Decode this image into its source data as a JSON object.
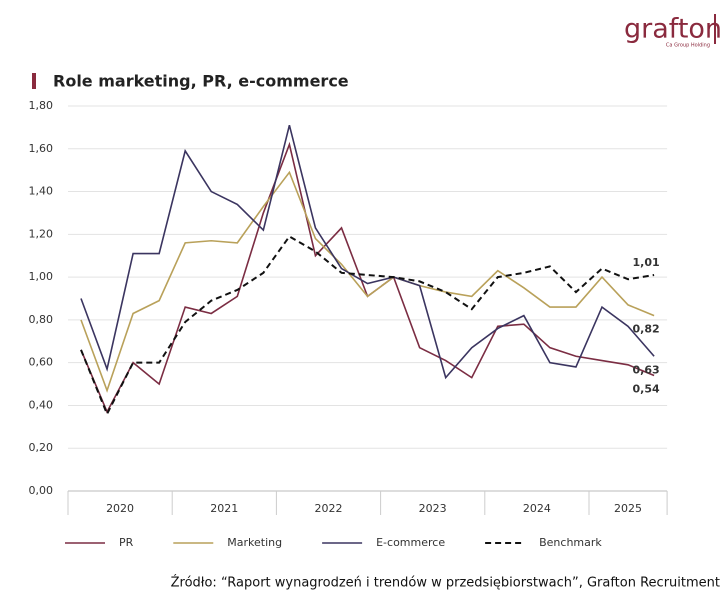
{
  "logo": "grafton",
  "logo_tagline": "Ca Group Holding",
  "source": "Źródło: “Raport wynagrodzeń i trendów w przedsiębiorstwach”, Grafton Recruitment",
  "chart_data": {
    "type": "line",
    "title": "Role marketing, PR, e-commerce",
    "categories": [
      "2020",
      null,
      null,
      null,
      "2021",
      null,
      null,
      null,
      "2022",
      null,
      null,
      null,
      "2023",
      null,
      null,
      null,
      "2024",
      null,
      null,
      null,
      "2025",
      null,
      null
    ],
    "ylim": [
      0,
      1.8
    ],
    "yticks": [
      {
        "value": 0,
        "label": "0,00"
      },
      {
        "value": 0.2,
        "label": "0,20"
      },
      {
        "value": 0.4,
        "label": "0,40"
      },
      {
        "value": 0.6,
        "label": "0,60"
      },
      {
        "value": 0.8,
        "label": "0,80"
      },
      {
        "value": 1,
        "label": "1,00"
      },
      {
        "value": 1.2,
        "label": "1,20"
      },
      {
        "value": 1.4,
        "label": "1,40"
      },
      {
        "value": 1.6,
        "label": "1,60"
      },
      {
        "value": 1.8,
        "label": "1,80"
      }
    ],
    "grid": true,
    "series": [
      {
        "name": "PR",
        "color": "#7b2d43",
        "dashed": false,
        "values": [
          0.66,
          0.37,
          0.6,
          0.5,
          0.86,
          0.83,
          0.91,
          1.3,
          1.62,
          1.1,
          1.23,
          0.91,
          1.0,
          0.67,
          0.61,
          0.53,
          0.77,
          0.78,
          0.67,
          0.63,
          0.61,
          0.59,
          0.54
        ],
        "value_labels": [
          null,
          null,
          null,
          null,
          null,
          null,
          null,
          null,
          null,
          null,
          null,
          null,
          null,
          null,
          null,
          null,
          null,
          null,
          null,
          null,
          null,
          null,
          "0,54"
        ]
      },
      {
        "name": "Marketing",
        "color": "#b9a15a",
        "dashed": false,
        "values": [
          0.8,
          0.47,
          0.83,
          0.89,
          1.16,
          1.17,
          1.16,
          1.33,
          1.49,
          1.18,
          1.06,
          0.91,
          1.0,
          0.96,
          0.93,
          0.91,
          1.03,
          0.95,
          0.86,
          0.86,
          1.0,
          0.87,
          0.82
        ],
        "value_labels": [
          null,
          null,
          null,
          null,
          null,
          null,
          null,
          null,
          null,
          null,
          null,
          null,
          null,
          null,
          null,
          null,
          null,
          null,
          null,
          null,
          null,
          null,
          "0,82"
        ]
      },
      {
        "name": "E-commerce",
        "color": "#3b3560",
        "dashed": false,
        "values": [
          0.9,
          0.57,
          1.11,
          1.11,
          1.59,
          1.4,
          1.34,
          1.22,
          1.71,
          1.23,
          1.04,
          0.97,
          1.0,
          0.96,
          0.53,
          0.67,
          0.76,
          0.82,
          0.6,
          0.58,
          0.86,
          0.77,
          0.63
        ],
        "value_labels": [
          null,
          null,
          null,
          null,
          null,
          null,
          null,
          null,
          null,
          null,
          null,
          null,
          null,
          null,
          null,
          null,
          null,
          null,
          null,
          null,
          null,
          null,
          "0,63"
        ]
      },
      {
        "name": "Benchmark",
        "color": "#111111",
        "dashed": true,
        "values": [
          0.66,
          0.36,
          0.6,
          0.6,
          0.79,
          0.89,
          0.94,
          1.02,
          1.19,
          1.12,
          1.02,
          1.01,
          1.0,
          0.98,
          0.93,
          0.85,
          1.0,
          1.02,
          1.05,
          0.93,
          1.04,
          0.99,
          1.01
        ],
        "value_labels": [
          null,
          null,
          null,
          null,
          null,
          null,
          null,
          null,
          null,
          null,
          null,
          null,
          null,
          null,
          null,
          null,
          null,
          null,
          null,
          null,
          null,
          null,
          "1,01"
        ]
      }
    ]
  }
}
